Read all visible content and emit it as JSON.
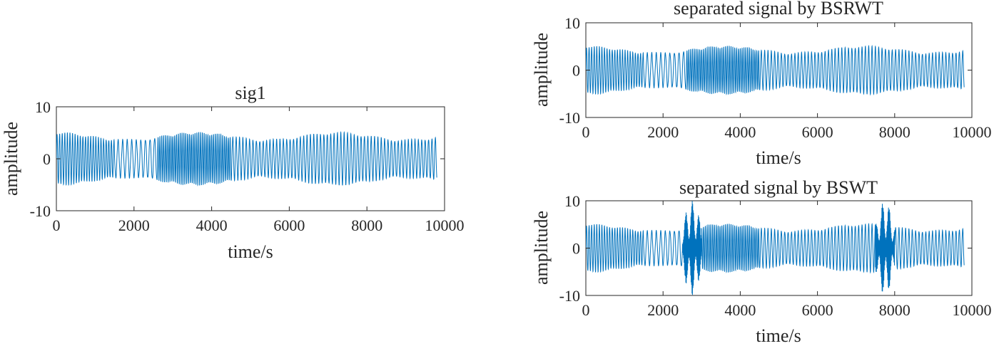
{
  "chart_data": [
    {
      "id": "sig1",
      "type": "line",
      "title": "sig1",
      "xlabel": "time/s",
      "ylabel": "amplitude",
      "xlim": [
        0,
        10000
      ],
      "ylim": [
        -10,
        10
      ],
      "xticks": [
        0,
        2000,
        4000,
        6000,
        8000,
        10000
      ],
      "yticks": [
        -10,
        0,
        10
      ],
      "grid": false,
      "line_color": "#0072BD",
      "series": [
        {
          "x_end": 9800,
          "envelope": {
            "base": 4.2,
            "modulation": 0.7,
            "period": 3600
          },
          "segments": [
            {
              "x0": 0,
              "x1": 1500,
              "freq": 0.015
            },
            {
              "x0": 1500,
              "x1": 2600,
              "freq": 0.0085
            },
            {
              "x0": 2600,
              "x1": 4500,
              "freq": 0.021
            },
            {
              "x0": 4500,
              "x1": 9800,
              "freq": 0.0115
            }
          ],
          "bursts": []
        }
      ]
    },
    {
      "id": "bsrwt",
      "type": "line",
      "title": "separated signal by BSRWT",
      "xlabel": "time/s",
      "ylabel": "amplitude",
      "xlim": [
        0,
        10000
      ],
      "ylim": [
        -10,
        10
      ],
      "xticks": [
        0,
        2000,
        4000,
        6000,
        8000,
        10000
      ],
      "yticks": [
        -10,
        0,
        10
      ],
      "grid": false,
      "line_color": "#0072BD",
      "series": [
        {
          "x_end": 9800,
          "envelope": {
            "base": 4.2,
            "modulation": 0.7,
            "period": 3600
          },
          "segments": [
            {
              "x0": 0,
              "x1": 1500,
              "freq": 0.015
            },
            {
              "x0": 1500,
              "x1": 2600,
              "freq": 0.0085
            },
            {
              "x0": 2600,
              "x1": 4500,
              "freq": 0.021
            },
            {
              "x0": 4500,
              "x1": 9800,
              "freq": 0.0115
            }
          ],
          "bursts": []
        }
      ]
    },
    {
      "id": "bswt",
      "type": "line",
      "title": "separated signal by BSWT",
      "xlabel": "time/s",
      "ylabel": "amplitude",
      "xlim": [
        0,
        10000
      ],
      "ylim": [
        -10,
        10
      ],
      "xticks": [
        0,
        2000,
        4000,
        6000,
        8000,
        10000
      ],
      "yticks": [
        -10,
        0,
        10
      ],
      "grid": false,
      "line_color": "#0072BD",
      "series": [
        {
          "x_end": 9800,
          "envelope": {
            "base": 4.2,
            "modulation": 0.7,
            "period": 3600
          },
          "segments": [
            {
              "x0": 0,
              "x1": 1500,
              "freq": 0.015
            },
            {
              "x0": 1500,
              "x1": 2600,
              "freq": 0.0085
            },
            {
              "x0": 2600,
              "x1": 4500,
              "freq": 0.021
            },
            {
              "x0": 4500,
              "x1": 9800,
              "freq": 0.0115
            }
          ],
          "bursts": [
            {
              "x0": 2500,
              "x1": 3000,
              "amplitude": 10
            },
            {
              "x0": 7500,
              "x1": 8000,
              "amplitude": 10
            }
          ]
        }
      ]
    }
  ]
}
